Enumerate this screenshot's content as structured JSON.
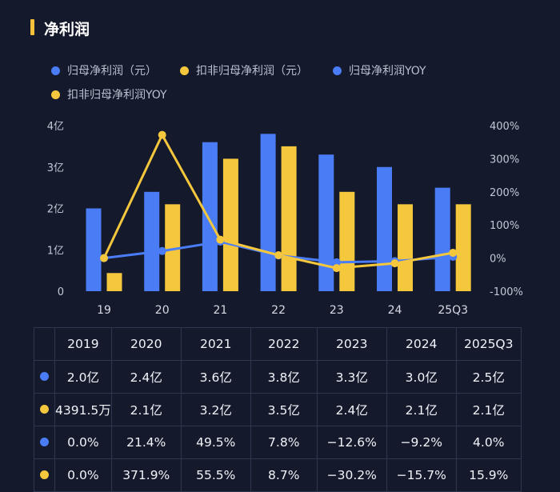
{
  "title": "净利润",
  "colors": {
    "blue": "#4a7cf6",
    "yellow": "#f5c73d",
    "grid": "#2f3850",
    "text": "#c2c8d6"
  },
  "legend": [
    {
      "label": "归母净利润（元）",
      "color": "#4a7cf6"
    },
    {
      "label": "扣非归母净利润（元）",
      "color": "#f5c73d"
    },
    {
      "label": "归母净利润YOY",
      "color": "#4a7cf6"
    },
    {
      "label": "扣非归母净利润YOY",
      "color": "#f5c73d"
    }
  ],
  "chart_data": {
    "type": "bar+line",
    "categories": [
      "19",
      "20",
      "21",
      "22",
      "23",
      "24",
      "25Q3"
    ],
    "left_axis": {
      "ticks": [
        "0",
        "1亿",
        "2亿",
        "3亿",
        "4亿"
      ],
      "ylim": [
        0,
        4
      ]
    },
    "right_axis": {
      "ticks": [
        "-100%",
        "0%",
        "100%",
        "200%",
        "300%",
        "400%"
      ],
      "ylim": [
        -100,
        400
      ]
    },
    "bar_series": [
      {
        "name": "归母净利润（元）",
        "values": [
          2.0,
          2.4,
          3.6,
          3.8,
          3.3,
          3.0,
          2.5
        ]
      },
      {
        "name": "扣非归母净利润（元）",
        "values": [
          0.439,
          2.1,
          3.2,
          3.5,
          2.4,
          2.1,
          2.1
        ]
      }
    ],
    "line_series": [
      {
        "name": "归母净利润YOY",
        "values": [
          0.0,
          21.4,
          49.5,
          7.8,
          -12.6,
          -9.2,
          4.0
        ]
      },
      {
        "name": "扣非归母净利润YOY",
        "values": [
          0.0,
          371.9,
          55.5,
          8.7,
          -30.2,
          -15.7,
          15.9
        ]
      }
    ]
  },
  "table": {
    "header": [
      "2019",
      "2020",
      "2021",
      "2022",
      "2023",
      "2024",
      "2025Q3"
    ],
    "rows": [
      {
        "dot": "#4a7cf6",
        "cells": [
          "2.0亿",
          "2.4亿",
          "3.6亿",
          "3.8亿",
          "3.3亿",
          "3.0亿",
          "2.5亿"
        ]
      },
      {
        "dot": "#f5c73d",
        "cells": [
          "4391.5万",
          "2.1亿",
          "3.2亿",
          "3.5亿",
          "2.4亿",
          "2.1亿",
          "2.1亿"
        ]
      },
      {
        "dot": "#4a7cf6",
        "cells": [
          "0.0%",
          "21.4%",
          "49.5%",
          "7.8%",
          "−12.6%",
          "−9.2%",
          "4.0%"
        ]
      },
      {
        "dot": "#f5c73d",
        "cells": [
          "0.0%",
          "371.9%",
          "55.5%",
          "8.7%",
          "−30.2%",
          "−15.7%",
          "15.9%"
        ]
      }
    ]
  }
}
